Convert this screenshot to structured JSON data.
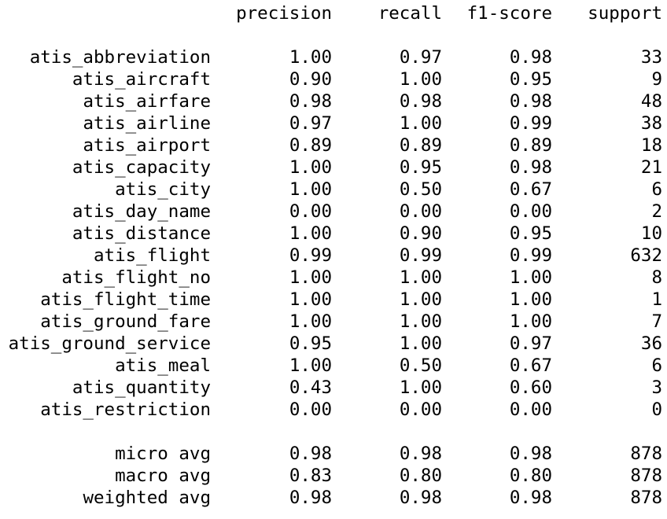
{
  "report": {
    "headers": [
      "precision",
      "recall",
      "f1-score",
      "support"
    ],
    "rows": [
      {
        "label": "atis_abbreviation",
        "precision": "1.00",
        "recall": "0.97",
        "f1": "0.98",
        "support": "33"
      },
      {
        "label": "atis_aircraft",
        "precision": "0.90",
        "recall": "1.00",
        "f1": "0.95",
        "support": "9"
      },
      {
        "label": "atis_airfare",
        "precision": "0.98",
        "recall": "0.98",
        "f1": "0.98",
        "support": "48"
      },
      {
        "label": "atis_airline",
        "precision": "0.97",
        "recall": "1.00",
        "f1": "0.99",
        "support": "38"
      },
      {
        "label": "atis_airport",
        "precision": "0.89",
        "recall": "0.89",
        "f1": "0.89",
        "support": "18"
      },
      {
        "label": "atis_capacity",
        "precision": "1.00",
        "recall": "0.95",
        "f1": "0.98",
        "support": "21"
      },
      {
        "label": "atis_city",
        "precision": "1.00",
        "recall": "0.50",
        "f1": "0.67",
        "support": "6"
      },
      {
        "label": "atis_day_name",
        "precision": "0.00",
        "recall": "0.00",
        "f1": "0.00",
        "support": "2"
      },
      {
        "label": "atis_distance",
        "precision": "1.00",
        "recall": "0.90",
        "f1": "0.95",
        "support": "10"
      },
      {
        "label": "atis_flight",
        "precision": "0.99",
        "recall": "0.99",
        "f1": "0.99",
        "support": "632"
      },
      {
        "label": "atis_flight_no",
        "precision": "1.00",
        "recall": "1.00",
        "f1": "1.00",
        "support": "8"
      },
      {
        "label": "atis_flight_time",
        "precision": "1.00",
        "recall": "1.00",
        "f1": "1.00",
        "support": "1"
      },
      {
        "label": "atis_ground_fare",
        "precision": "1.00",
        "recall": "1.00",
        "f1": "1.00",
        "support": "7"
      },
      {
        "label": "atis_ground_service",
        "precision": "0.95",
        "recall": "1.00",
        "f1": "0.97",
        "support": "36"
      },
      {
        "label": "atis_meal",
        "precision": "1.00",
        "recall": "0.50",
        "f1": "0.67",
        "support": "6"
      },
      {
        "label": "atis_quantity",
        "precision": "0.43",
        "recall": "1.00",
        "f1": "0.60",
        "support": "3"
      },
      {
        "label": "atis_restriction",
        "precision": "0.00",
        "recall": "0.00",
        "f1": "0.00",
        "support": "0"
      }
    ],
    "averages": [
      {
        "label": "micro avg",
        "precision": "0.98",
        "recall": "0.98",
        "f1": "0.98",
        "support": "878"
      },
      {
        "label": "macro avg",
        "precision": "0.83",
        "recall": "0.80",
        "f1": "0.80",
        "support": "878"
      },
      {
        "label": "weighted avg",
        "precision": "0.98",
        "recall": "0.98",
        "f1": "0.98",
        "support": "878"
      }
    ]
  }
}
